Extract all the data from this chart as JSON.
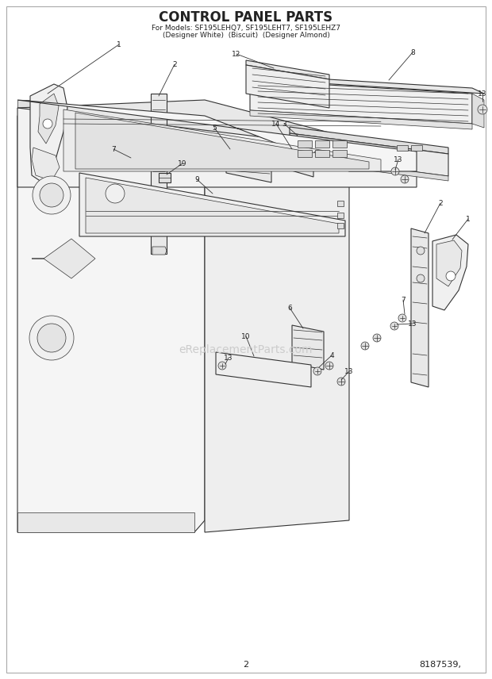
{
  "title_line1": "CONTROL PANEL PARTS",
  "title_line2": "For Models: SF195LEHQ7, SF195LEHT7, SF195LEHZ7",
  "title_line3": "(Designer White)  (Biscuit)  (Designer Almond)",
  "page_number": "2",
  "part_number": "8187539,",
  "bg": "#ffffff",
  "ec": "#333333",
  "fc_light": "#f8f8f8",
  "fc_mid": "#ececec",
  "fc_dark": "#e0e0e0",
  "watermark": "eReplacementParts.com",
  "watermark_color": "#cccccc"
}
